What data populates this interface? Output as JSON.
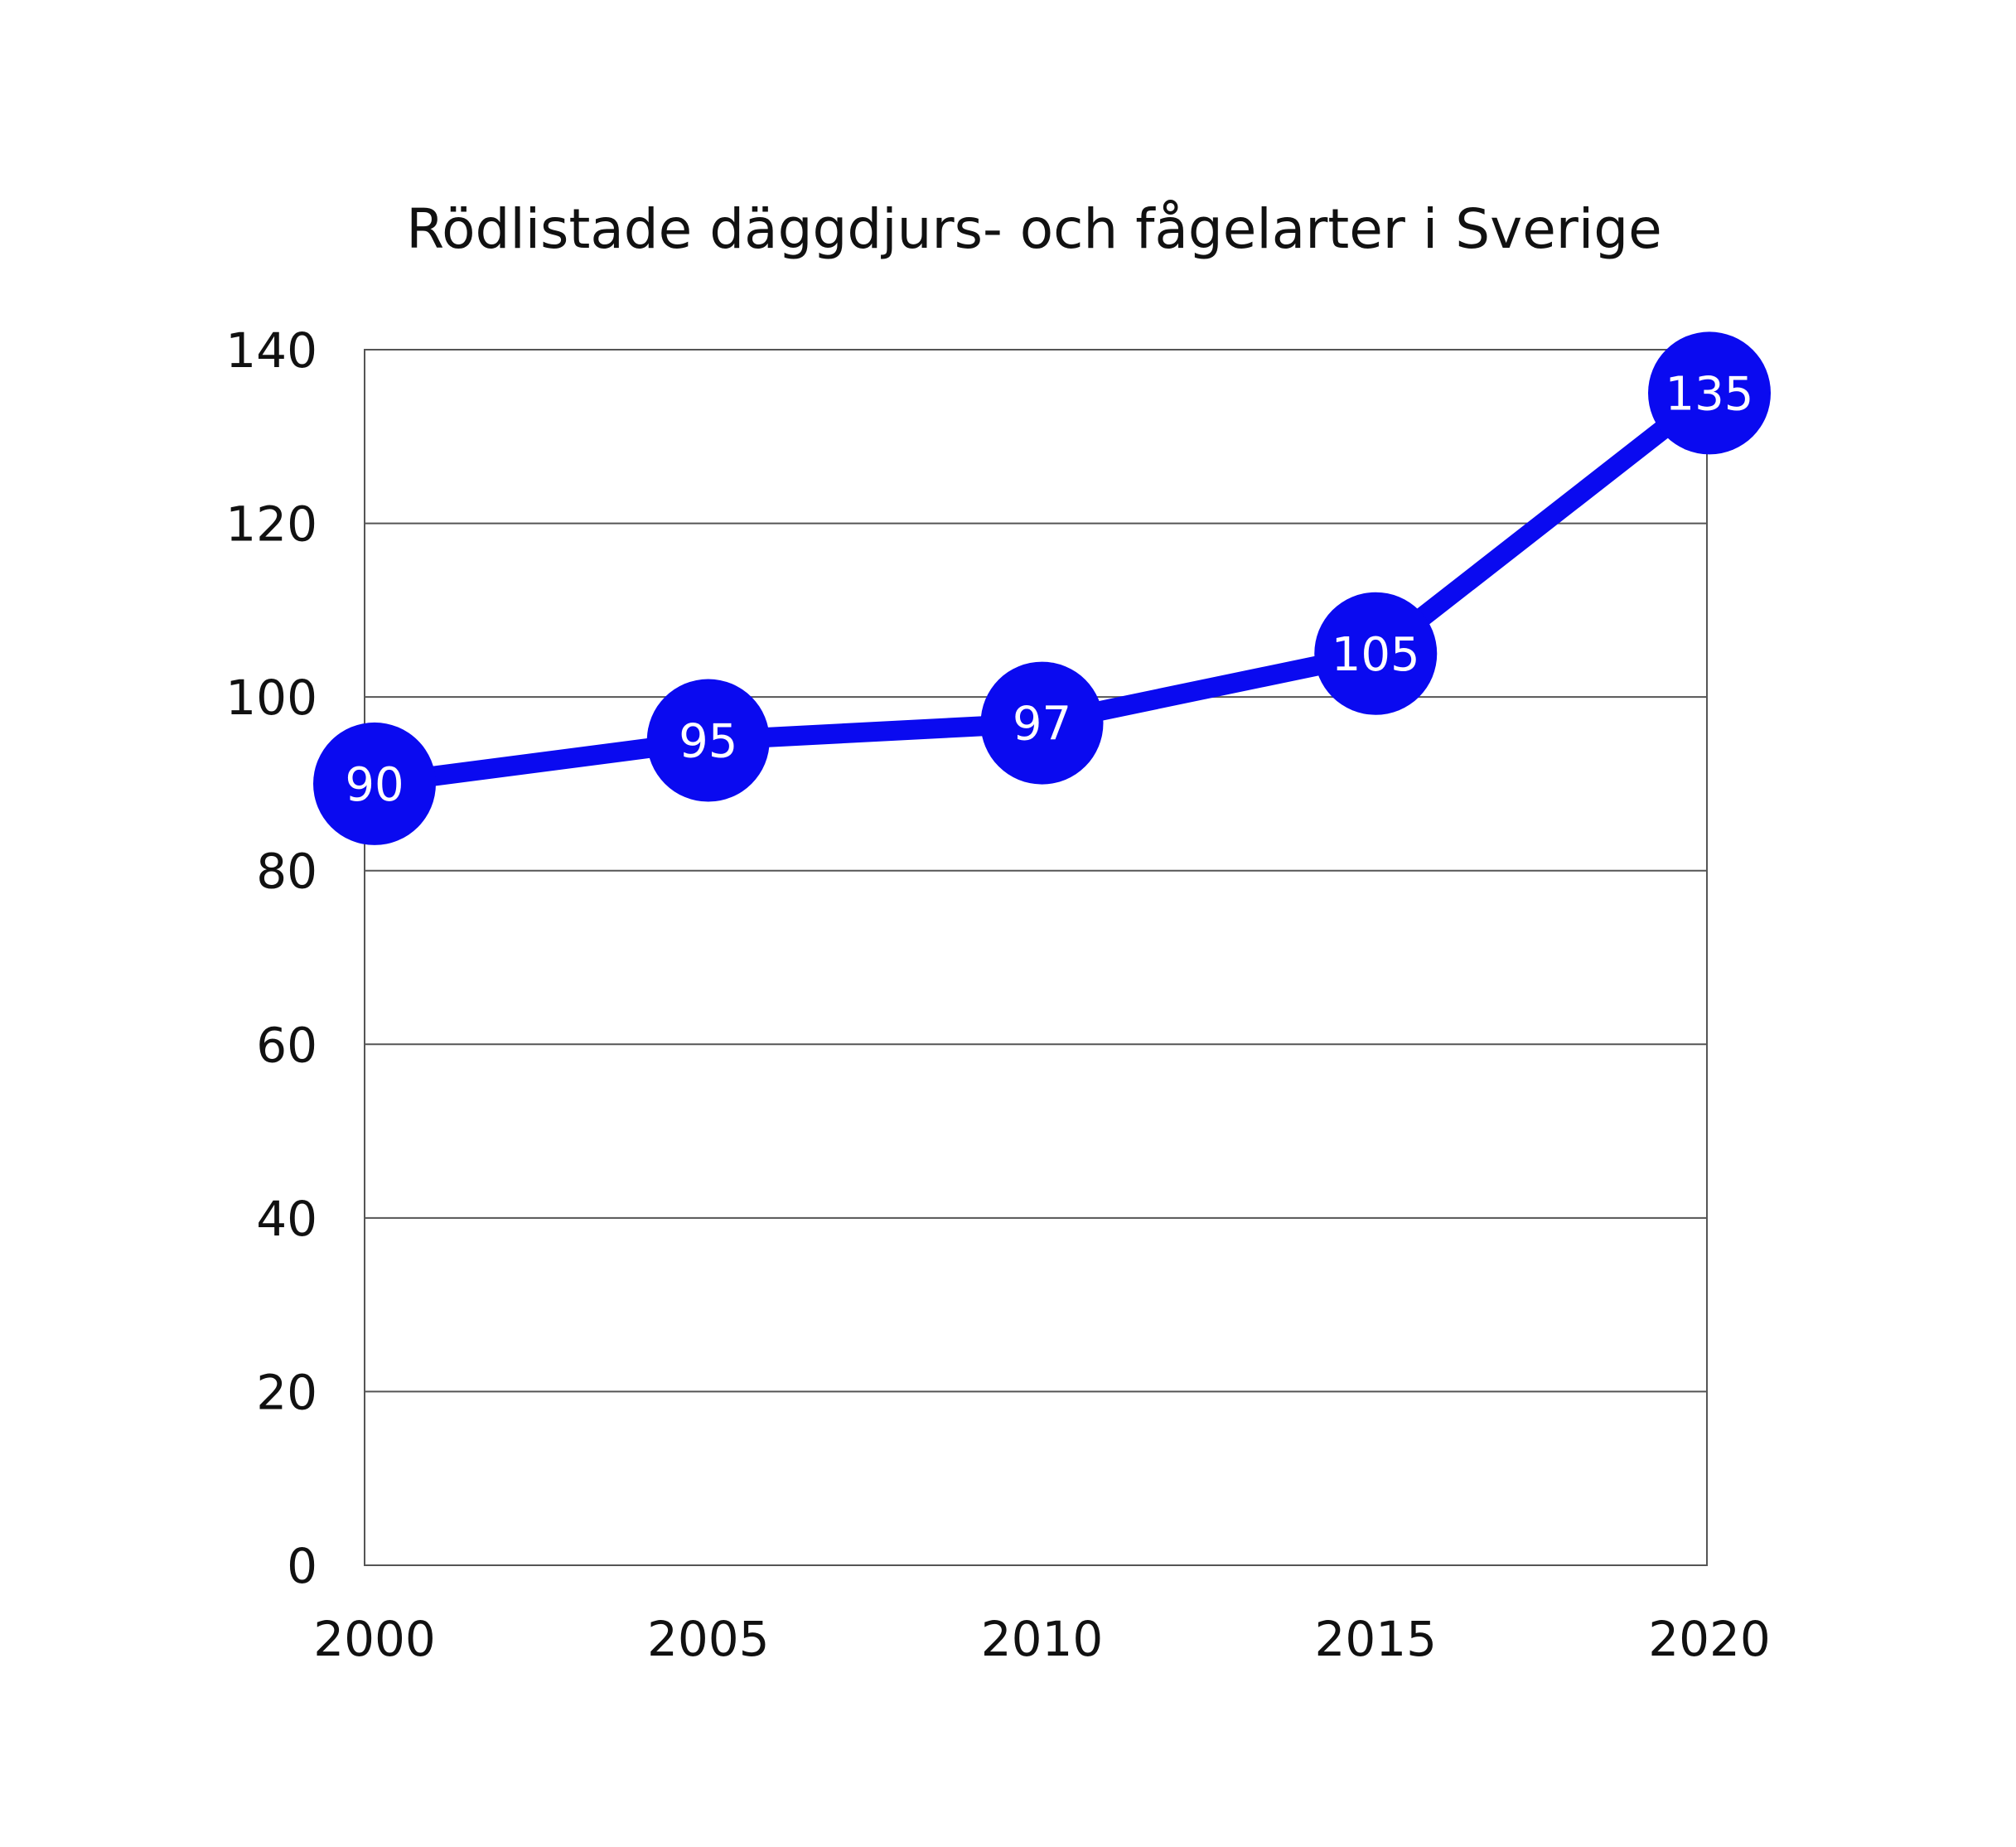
{
  "chart_data": {
    "type": "line",
    "title": "Rödlistade däggdjurs- och fågelarter i Sverige",
    "xlabel": "",
    "ylabel": "",
    "categories": [
      "2000",
      "2005",
      "2010",
      "2015",
      "2020"
    ],
    "series": [
      {
        "values": [
          90,
          95,
          97,
          105,
          135
        ],
        "color": "#0a0af0"
      }
    ],
    "ylim": [
      0,
      140
    ],
    "yticks": [
      "0",
      "20",
      "40",
      "60",
      "80",
      "100",
      "120",
      "140"
    ],
    "grid": true,
    "legend": "none"
  }
}
